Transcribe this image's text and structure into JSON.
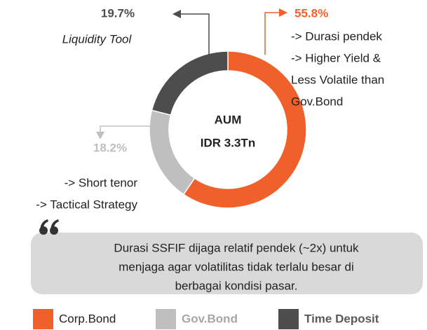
{
  "chart_data": {
    "type": "donut",
    "categories": [
      "Corp.Bond",
      "Gov.Bond",
      "Time Deposit"
    ],
    "values": [
      55.8,
      18.2,
      19.7
    ],
    "value_labels": [
      "55.8%",
      "18.2%",
      "19.7%"
    ],
    "colors": [
      "#f0602a",
      "#bfbfbf",
      "#4d4d4d"
    ],
    "descriptions": [
      [
        "-> Durasi pendek",
        "-> Higher Yield &",
        "Less Volatile than",
        "Gov.Bond"
      ],
      [
        "-> Short tenor",
        "-> Tactical Strategy"
      ],
      [
        "Liquidity Tool"
      ]
    ],
    "center_text": [
      "AUM",
      "IDR 3.3Tn"
    ],
    "quote": [
      "Durasi SSFIF dijaga relatif pendek (~2x) untuk",
      "menjaga agar volatilitas tidak terlalu besar di",
      "berbagai kondisi pasar."
    ]
  }
}
